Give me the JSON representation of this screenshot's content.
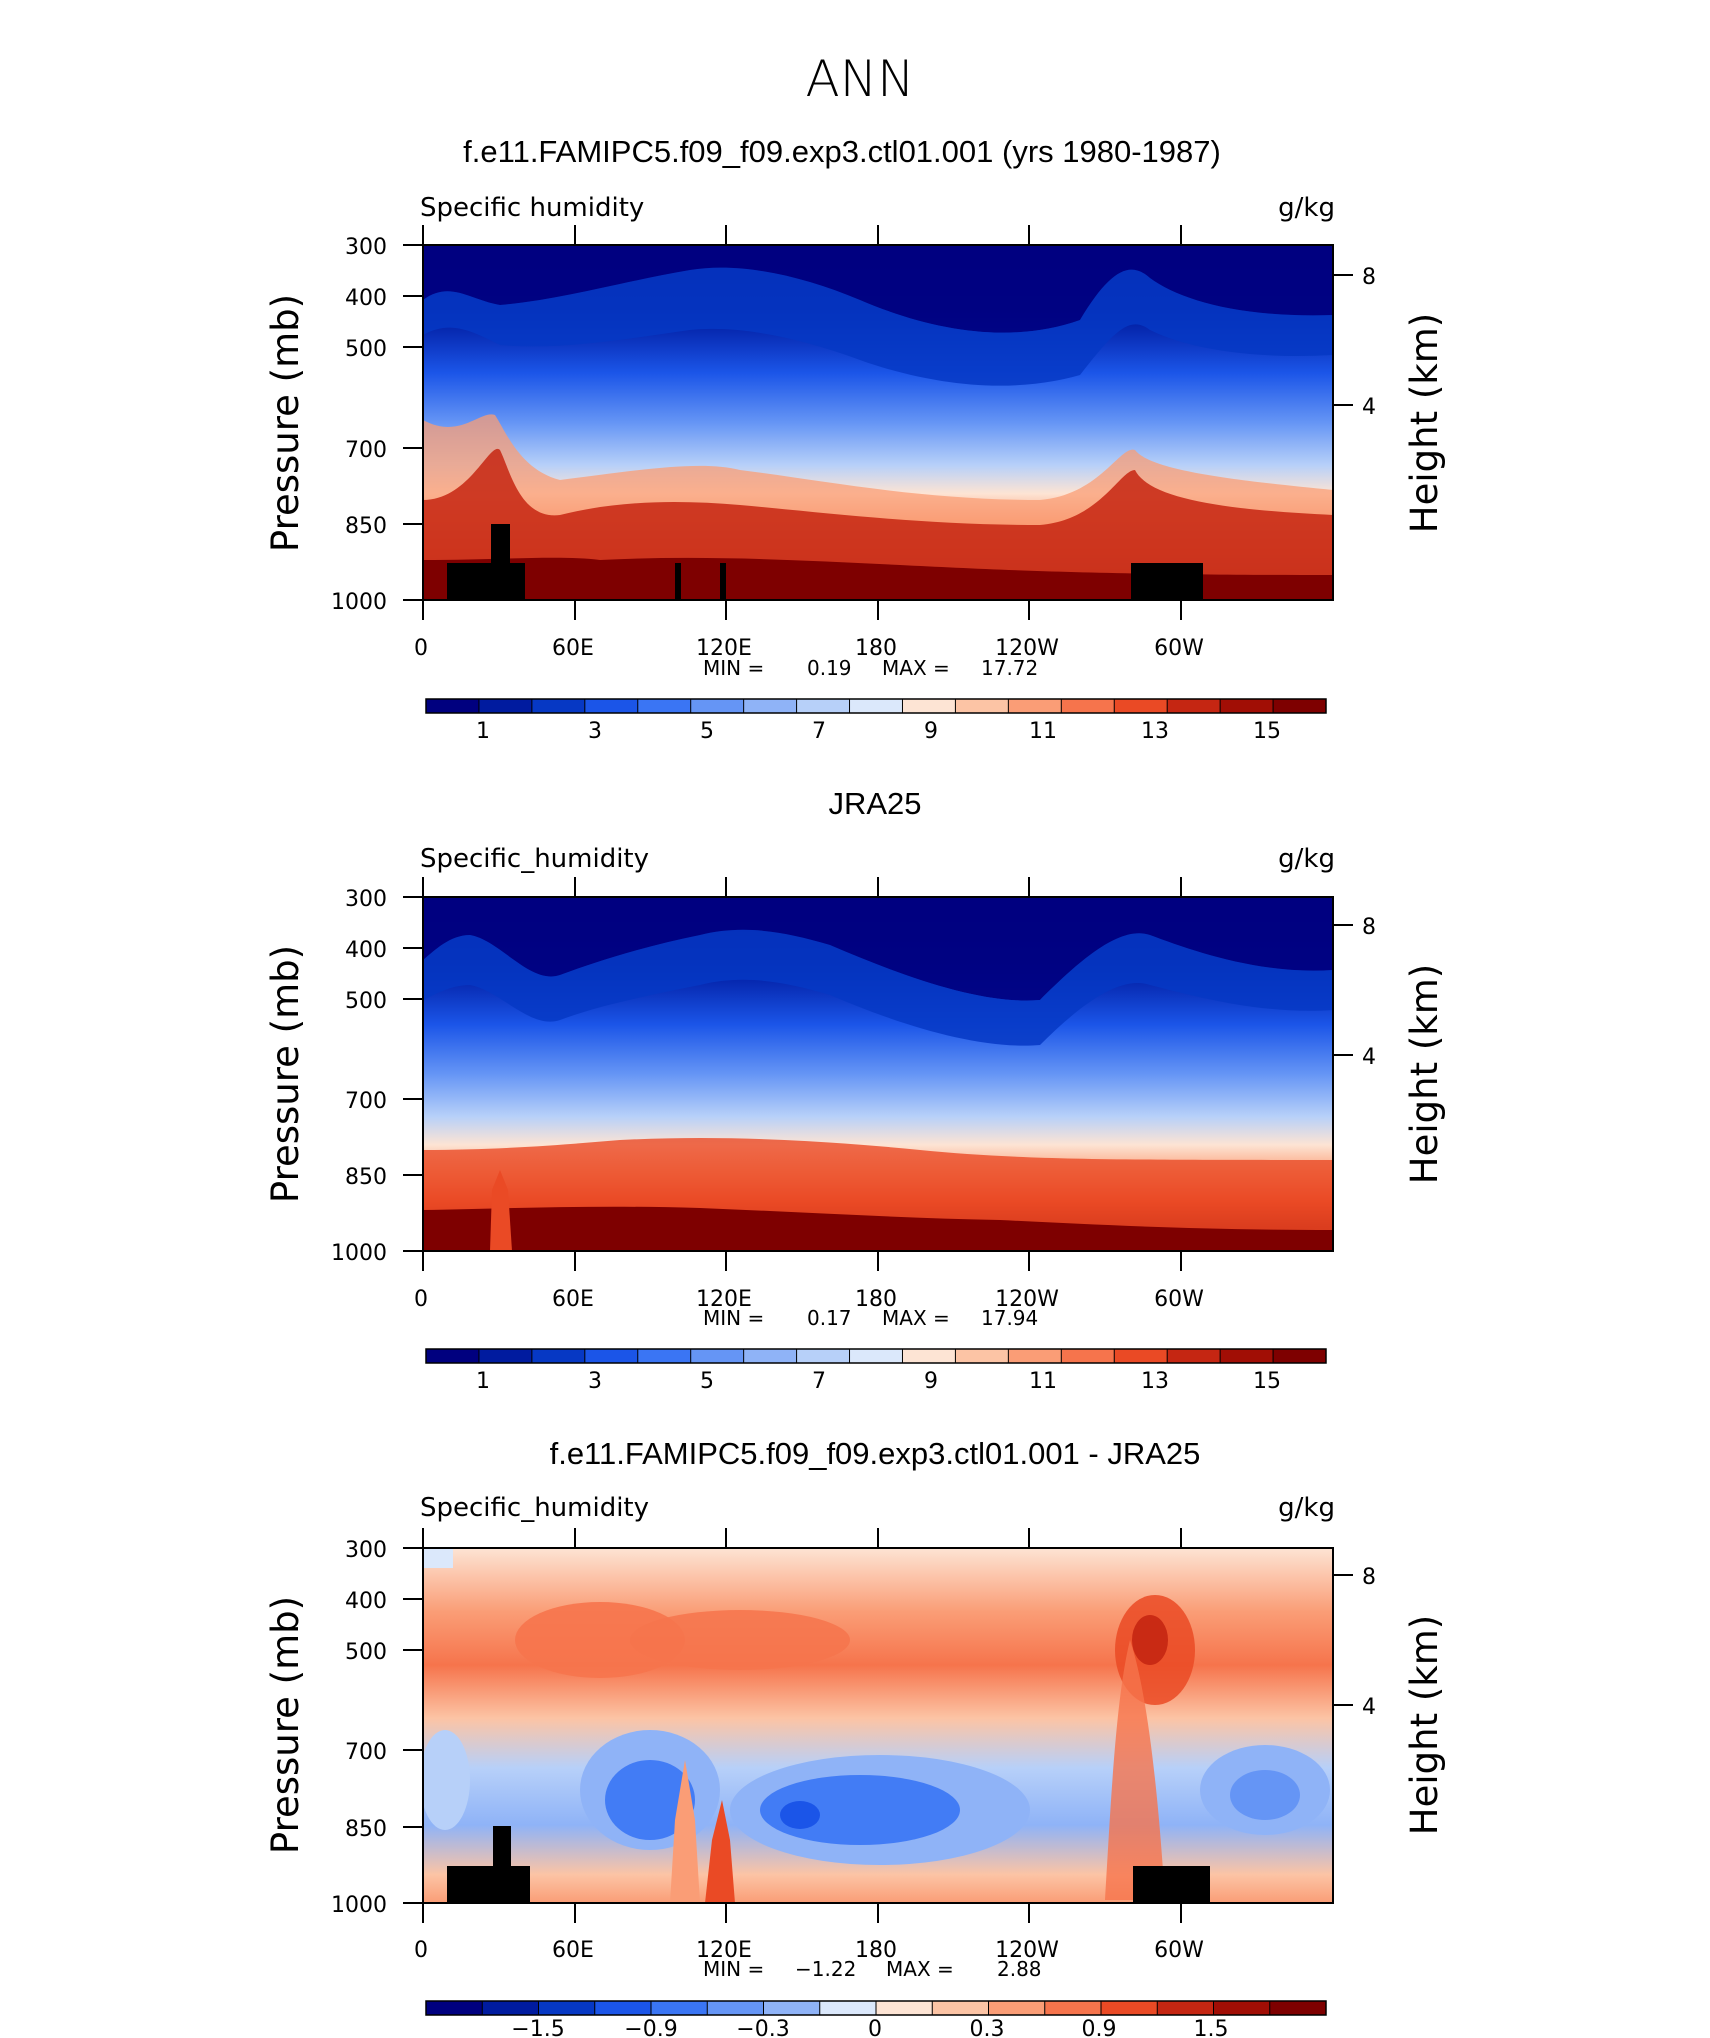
{
  "figure_title": "ANN",
  "chart_data": [
    {
      "type": "heatmap",
      "title": "f.e11.FAMIPC5.f09_f09.exp3.ctl01.001 (yrs 1980-1987)",
      "left_label": "Specific humidity",
      "right_label": "g/kg",
      "ylabel": "Pressure (mb)",
      "ylabel_right": "Height (km)",
      "xticks": [
        "0",
        "60E",
        "120E",
        "180",
        "120W",
        "60W"
      ],
      "yticks": [
        "300",
        "400",
        "500",
        "700",
        "850",
        "1000"
      ],
      "yticks_right": [
        "8",
        "4"
      ],
      "xlim": [
        0,
        360
      ],
      "ylim": [
        1000,
        300
      ],
      "y_scale": "log",
      "min_label": "MIN =",
      "min_value": "0.19",
      "max_label": "MAX =",
      "max_value": "17.72",
      "colorbar_labels": [
        "1",
        "3",
        "5",
        "7",
        "9",
        "11",
        "13",
        "15"
      ],
      "levels": [
        1,
        2,
        3,
        4,
        5,
        6,
        7,
        8,
        9,
        10,
        11,
        12,
        13,
        14,
        15,
        16
      ],
      "colors": [
        "#00007f",
        "#001b9f",
        "#0638c4",
        "#1b55e8",
        "#3a75f4",
        "#6595f5",
        "#8fb3f7",
        "#b7d0f9",
        "#dbe8fb",
        "#fde4d4",
        "#fcc4a5",
        "#fa9d76",
        "#f6744c",
        "#ea4a25",
        "#c52612",
        "#a10e05",
        "#7e0000"
      ]
    },
    {
      "type": "heatmap",
      "title": "JRA25",
      "left_label": "Specific_humidity",
      "right_label": "g/kg",
      "ylabel": "Pressure (mb)",
      "ylabel_right": "Height (km)",
      "xticks": [
        "0",
        "60E",
        "120E",
        "180",
        "120W",
        "60W"
      ],
      "yticks": [
        "300",
        "400",
        "500",
        "700",
        "850",
        "1000"
      ],
      "yticks_right": [
        "8",
        "4"
      ],
      "xlim": [
        0,
        360
      ],
      "ylim": [
        1000,
        300
      ],
      "y_scale": "log",
      "min_label": "MIN =",
      "min_value": "0.17",
      "max_label": "MAX =",
      "max_value": "17.94",
      "colorbar_labels": [
        "1",
        "3",
        "5",
        "7",
        "9",
        "11",
        "13",
        "15"
      ],
      "levels": [
        1,
        2,
        3,
        4,
        5,
        6,
        7,
        8,
        9,
        10,
        11,
        12,
        13,
        14,
        15,
        16
      ],
      "colors": [
        "#00007f",
        "#001b9f",
        "#0638c4",
        "#1b55e8",
        "#3a75f4",
        "#6595f5",
        "#8fb3f7",
        "#b7d0f9",
        "#dbe8fb",
        "#fde4d4",
        "#fcc4a5",
        "#fa9d76",
        "#f6744c",
        "#ea4a25",
        "#c52612",
        "#a10e05",
        "#7e0000"
      ]
    },
    {
      "type": "heatmap",
      "title": "f.e11.FAMIPC5.f09_f09.exp3.ctl01.001 - JRA25",
      "left_label": "Specific_humidity",
      "right_label": "g/kg",
      "ylabel": "Pressure (mb)",
      "ylabel_right": "Height (km)",
      "xticks": [
        "0",
        "60E",
        "120E",
        "180",
        "120W",
        "60W"
      ],
      "yticks": [
        "300",
        "400",
        "500",
        "700",
        "850",
        "1000"
      ],
      "yticks_right": [
        "8",
        "4"
      ],
      "xlim": [
        0,
        360
      ],
      "ylim": [
        1000,
        300
      ],
      "y_scale": "log",
      "min_label": "MIN =",
      "min_value": "−1.22",
      "max_label": "MAX =",
      "max_value": "2.88",
      "colorbar_labels": [
        "−1.5",
        "−0.9",
        "−0.3",
        "0",
        "0.3",
        "0.9",
        "1.5"
      ],
      "levels": [
        -1.8,
        -1.5,
        -1.2,
        -0.9,
        -0.6,
        -0.3,
        -0.1,
        0,
        0.1,
        0.3,
        0.6,
        0.9,
        1.2,
        1.5,
        1.8
      ],
      "colors": [
        "#00007f",
        "#001b9f",
        "#0638c4",
        "#1b55e8",
        "#3a75f4",
        "#6595f5",
        "#8fb3f7",
        "#dbe8fb",
        "#fde4d4",
        "#fcc4a5",
        "#fa9d76",
        "#f6744c",
        "#ea4a25",
        "#c52612",
        "#a10e05",
        "#7e0000"
      ]
    }
  ]
}
